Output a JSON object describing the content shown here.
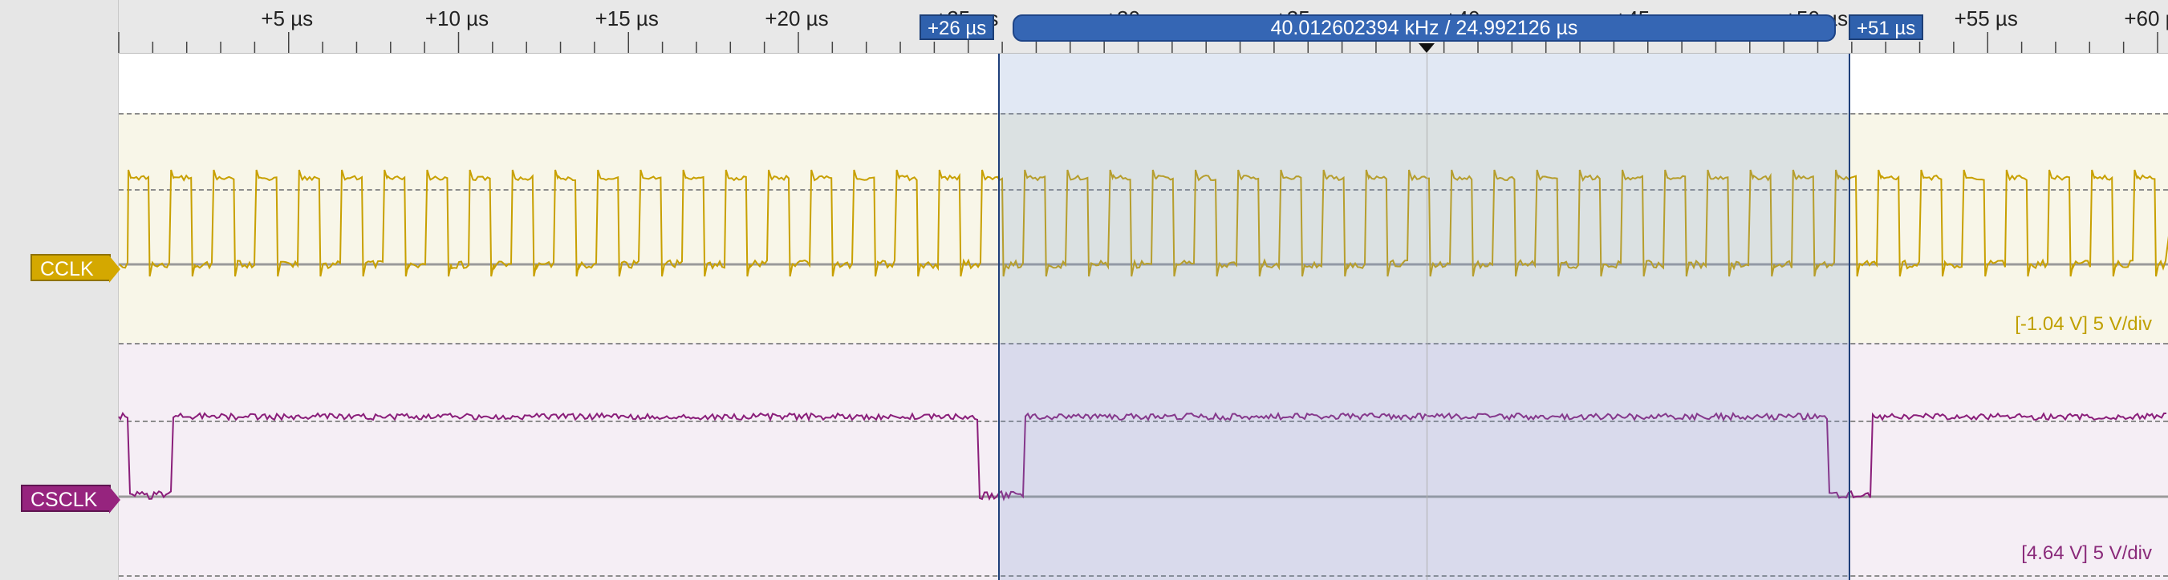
{
  "ruler": {
    "ticks": [
      "+5 µs",
      "+10 µs",
      "+15 µs",
      "+20 µs",
      "+25 µs",
      "+30 µs",
      "+35 µs",
      "+40 µs",
      "+45 µs",
      "+50 µs",
      "+55 µs",
      "+60 µs"
    ]
  },
  "cursors": {
    "left": "+26 µs",
    "right": "+51 µs",
    "measurement": "40.012602394 kHz / 24.992126 µs"
  },
  "channels": [
    {
      "name": "CCLK",
      "scale": "[-1.04 V] 5 V/div",
      "color": "#c8a000"
    },
    {
      "name": "CSCLK",
      "scale": "[4.64 V] 5 V/div",
      "color": "#8a1e7a"
    }
  ]
}
